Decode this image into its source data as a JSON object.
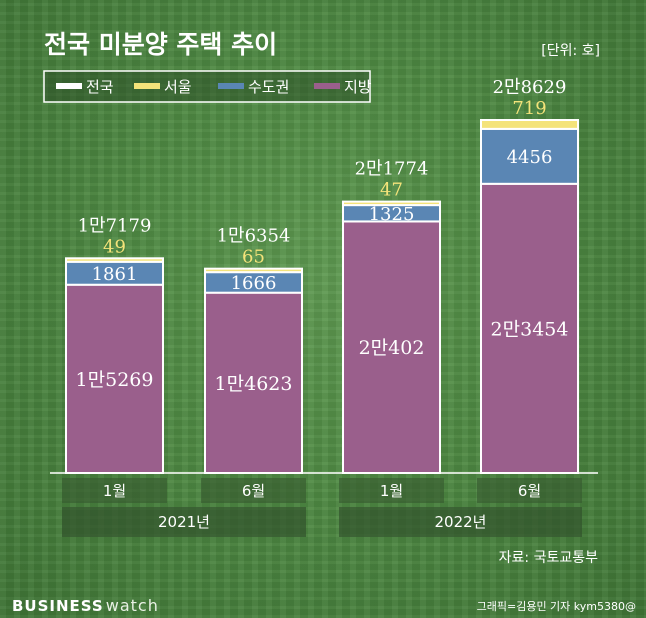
{
  "header": {
    "title": "전국 미분양 주택 추이",
    "unit": "[단위: 호]"
  },
  "legend": [
    {
      "label": "전국",
      "color": "#ffffff"
    },
    {
      "label": "서울",
      "color": "#f4e37a"
    },
    {
      "label": "수도권",
      "color": "#5a86b4"
    },
    {
      "label": "지방",
      "color": "#9a5f8c"
    }
  ],
  "chart_data": {
    "type": "bar",
    "stacked": true,
    "categories": [
      "1월",
      "6월",
      "1월",
      "6월"
    ],
    "years": [
      {
        "label": "2021년",
        "span": [
          0,
          1
        ]
      },
      {
        "label": "2022년",
        "span": [
          2,
          3
        ]
      }
    ],
    "totals": [
      17179,
      16354,
      21774,
      28629
    ],
    "total_labels": [
      "1만7179",
      "1만6354",
      "2만1774",
      "2만8629"
    ],
    "series": [
      {
        "name": "지방",
        "values": [
          15269,
          14623,
          20402,
          23454
        ],
        "labels": [
          "1만5269",
          "1만4623",
          "2만402",
          "2만3454"
        ],
        "color": "#9a5f8c"
      },
      {
        "name": "수도권",
        "values": [
          1861,
          1666,
          1325,
          4456
        ],
        "labels": [
          "1861",
          "1666",
          "1325",
          "4456"
        ],
        "color": "#5a86b4"
      },
      {
        "name": "서울",
        "values": [
          49,
          65,
          47,
          719
        ],
        "labels": [
          "49",
          "65",
          "47",
          "719"
        ],
        "color": "#f4e37a"
      }
    ],
    "ylim": [
      0,
      30000
    ],
    "grid": false,
    "legend_position": "top-left"
  },
  "footer": {
    "source": "자료: 국토교통부",
    "brand_bold": "BUSINESS",
    "brand_light": "watch",
    "credit": "그래픽=김용민 기자 kym5380@"
  }
}
